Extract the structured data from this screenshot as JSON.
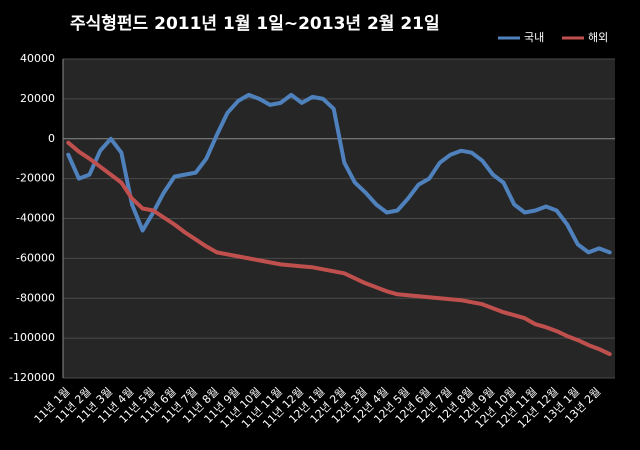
{
  "chart_data": {
    "type": "line",
    "title": "주식형펀드    2011년 1월 1일~2013년 2월 21일",
    "categories": [
      "11년 1월",
      null,
      "11년 2월",
      null,
      "11년 3월",
      null,
      "11년 4월",
      null,
      "11년 5월",
      null,
      "11년 6월",
      null,
      "11년 7월",
      null,
      "11년 8월",
      null,
      "11년 9월",
      null,
      "11년 10월",
      null,
      "11년 11월",
      null,
      "11년 12월",
      null,
      "12년 1월",
      null,
      "12년 2월",
      null,
      "12년 3월",
      null,
      "12년 4월",
      null,
      "12년 5월",
      null,
      "12년 6월",
      null,
      "12년 7월",
      null,
      "12년 8월",
      null,
      "12년 9월",
      null,
      "12년 10월",
      null,
      "12년 11월",
      null,
      "12년 12월",
      null,
      "13년 1월",
      null,
      "13년 2월",
      null
    ],
    "series": [
      {
        "name": "국내",
        "color": "#4f81bd",
        "values": [
          -8000,
          -20000,
          -18000,
          -6000,
          0,
          -7000,
          -33000,
          -46000,
          -37000,
          -27000,
          -19000,
          -18000,
          -17000,
          -10000,
          2000,
          13000,
          19000,
          22000,
          20000,
          17000,
          18000,
          22000,
          18000,
          21000,
          20000,
          15000,
          -12000,
          -22000,
          -27000,
          -33000,
          -37000,
          -36000,
          -30000,
          -23000,
          -20000,
          -12000,
          -8000,
          -6000,
          -7000,
          -11000,
          -18000,
          -22000,
          -33000,
          -37000,
          -36000,
          -34000,
          -36000,
          -43000,
          -53000,
          -57000,
          -55000,
          -57000
        ]
      },
      {
        "name": "해외",
        "color": "#c0504d",
        "values": [
          -2000,
          -6500,
          -10000,
          -14000,
          -18000,
          -22000,
          -30000,
          -35000,
          -36000,
          -39500,
          -43000,
          -47000,
          -50500,
          -54000,
          -57000,
          -58000,
          -59000,
          -60000,
          -61000,
          -62000,
          -63000,
          -63500,
          -64000,
          -64500,
          -65500,
          -66500,
          -67500,
          -70000,
          -72500,
          -74500,
          -76500,
          -78000,
          -78500,
          -79000,
          -79500,
          -80000,
          -80500,
          -81000,
          -82000,
          -83000,
          -85000,
          -87000,
          -88500,
          -90000,
          -93000,
          -94500,
          -96500,
          -99000,
          -101000,
          -103500,
          -105500,
          -108000
        ]
      }
    ],
    "ylim": [
      -120000,
      40000
    ],
    "yticks": [
      -120000,
      -100000,
      -80000,
      -60000,
      -40000,
      -20000,
      0,
      20000,
      40000
    ],
    "grid": true,
    "legend": "top-right"
  }
}
